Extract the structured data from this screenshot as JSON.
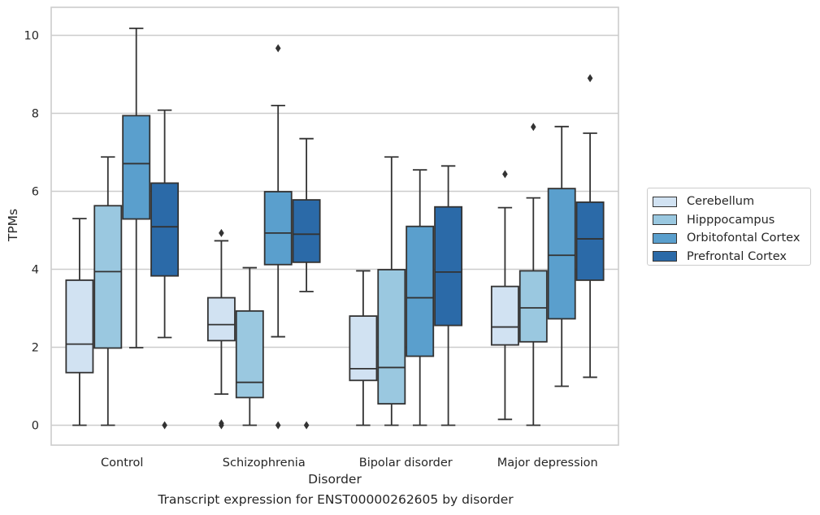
{
  "chart_data": {
    "type": "box",
    "xlabel": "Disorder",
    "ylabel": "TPMs",
    "caption": "Transcript expression for ENST00000262605 by disorder",
    "ylim": [
      -0.5,
      10.7
    ],
    "yticks": [
      0,
      2,
      4,
      6,
      8,
      10
    ],
    "grid": "horizontal",
    "legend_position": "right",
    "categories": [
      "Control",
      "Schizophrenia",
      "Bipolar disorder",
      "Major depression"
    ],
    "series": [
      {
        "name": "Cerebellum",
        "color": "#d1e2f2",
        "boxes": [
          {
            "whisker_low": 0.0,
            "q1": 1.35,
            "median": 2.08,
            "q3": 3.72,
            "whisker_high": 5.3,
            "outliers": []
          },
          {
            "whisker_low": 0.8,
            "q1": 2.17,
            "median": 2.58,
            "q3": 3.27,
            "whisker_high": 4.73,
            "outliers": [
              0.0,
              0.05,
              4.93
            ]
          },
          {
            "whisker_low": 0.0,
            "q1": 1.15,
            "median": 1.45,
            "q3": 2.8,
            "whisker_high": 3.96,
            "outliers": []
          },
          {
            "whisker_low": 0.15,
            "q1": 2.06,
            "median": 2.52,
            "q3": 3.56,
            "whisker_high": 5.58,
            "outliers": [
              6.44
            ]
          }
        ]
      },
      {
        "name": "Hipppocampus",
        "color": "#9ac8e0",
        "boxes": [
          {
            "whisker_low": 0.0,
            "q1": 1.98,
            "median": 3.94,
            "q3": 5.63,
            "whisker_high": 6.88,
            "outliers": []
          },
          {
            "whisker_low": 0.0,
            "q1": 0.71,
            "median": 1.1,
            "q3": 2.93,
            "whisker_high": 4.04,
            "outliers": []
          },
          {
            "whisker_low": 0.0,
            "q1": 0.55,
            "median": 1.48,
            "q3": 3.99,
            "whisker_high": 6.88,
            "outliers": []
          },
          {
            "whisker_low": 0.0,
            "q1": 2.14,
            "median": 3.01,
            "q3": 3.96,
            "whisker_high": 5.83,
            "outliers": [
              7.65
            ]
          }
        ]
      },
      {
        "name": "Orbitofontal Cortex",
        "color": "#5a9fcd",
        "boxes": [
          {
            "whisker_low": 1.99,
            "q1": 5.29,
            "median": 6.71,
            "q3": 7.94,
            "whisker_high": 10.18,
            "outliers": []
          },
          {
            "whisker_low": 2.27,
            "q1": 4.12,
            "median": 4.93,
            "q3": 5.99,
            "whisker_high": 8.2,
            "outliers": [
              0.0,
              9.67
            ]
          },
          {
            "whisker_low": 0.0,
            "q1": 1.77,
            "median": 3.27,
            "q3": 5.1,
            "whisker_high": 6.55,
            "outliers": []
          },
          {
            "whisker_low": 1.0,
            "q1": 2.73,
            "median": 4.36,
            "q3": 6.07,
            "whisker_high": 7.66,
            "outliers": []
          }
        ]
      },
      {
        "name": "Prefrontal Cortex",
        "color": "#2b6aa8",
        "boxes": [
          {
            "whisker_low": 2.25,
            "q1": 3.83,
            "median": 5.09,
            "q3": 6.21,
            "whisker_high": 8.08,
            "outliers": [
              0.0
            ]
          },
          {
            "whisker_low": 3.43,
            "q1": 4.18,
            "median": 4.9,
            "q3": 5.78,
            "whisker_high": 7.35,
            "outliers": [
              0.0
            ]
          },
          {
            "whisker_low": 0.0,
            "q1": 2.56,
            "median": 3.93,
            "q3": 5.6,
            "whisker_high": 6.65,
            "outliers": []
          },
          {
            "whisker_low": 1.23,
            "q1": 3.72,
            "median": 4.78,
            "q3": 5.72,
            "whisker_high": 7.49,
            "outliers": [
              8.9
            ]
          }
        ]
      }
    ]
  }
}
